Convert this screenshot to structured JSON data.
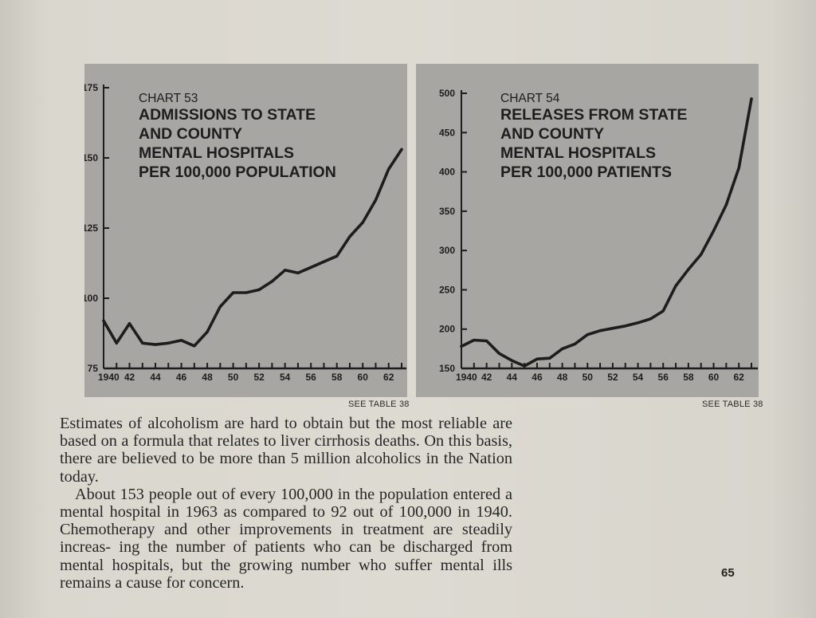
{
  "chart_data": [
    {
      "id": "chart-53",
      "type": "line",
      "title": "CHART 53",
      "subtitle_lines": [
        "ADMISSIONS TO STATE",
        "AND COUNTY",
        "MENTAL HOSPITALS",
        "PER 100,000 POPULATION"
      ],
      "xlabel": "",
      "ylabel": "",
      "xlim": [
        1940,
        1963
      ],
      "ylim": [
        75,
        175
      ],
      "y_ticks": [
        75,
        100,
        125,
        150,
        175
      ],
      "x_tick_labels": [
        "1940",
        "42",
        "44",
        "46",
        "48",
        "50",
        "52",
        "54",
        "56",
        "58",
        "60",
        "62"
      ],
      "grid": false,
      "series": [
        {
          "x": [
            1940,
            1941,
            1942,
            1943,
            1944,
            1945,
            1946,
            1947,
            1948,
            1949,
            1950,
            1951,
            1952,
            1953,
            1954,
            1955,
            1956,
            1957,
            1958,
            1959,
            1960,
            1961,
            1962,
            1963
          ],
          "values": [
            92,
            84,
            91,
            84,
            83.5,
            84,
            85,
            83,
            88,
            97,
            102,
            102,
            103,
            106,
            110,
            109,
            111,
            113,
            115,
            122,
            127,
            135,
            146,
            153
          ]
        }
      ],
      "source_note": "SEE TABLE 38"
    },
    {
      "id": "chart-54",
      "type": "line",
      "title": "CHART 54",
      "subtitle_lines": [
        "RELEASES FROM STATE",
        "AND COUNTY",
        "MENTAL HOSPITALS",
        "PER 100,000 PATIENTS"
      ],
      "xlabel": "",
      "ylabel": "",
      "xlim": [
        1940,
        1963
      ],
      "ylim": [
        150,
        500
      ],
      "y_ticks": [
        150,
        200,
        250,
        300,
        350,
        400,
        450,
        500
      ],
      "x_tick_labels": [
        "1940",
        "42",
        "44",
        "46",
        "48",
        "50",
        "52",
        "54",
        "56",
        "58",
        "60",
        "62"
      ],
      "grid": false,
      "series": [
        {
          "x": [
            1940,
            1941,
            1942,
            1943,
            1944,
            1945,
            1946,
            1947,
            1948,
            1949,
            1950,
            1951,
            1952,
            1953,
            1954,
            1955,
            1956,
            1957,
            1958,
            1959,
            1960,
            1961,
            1962,
            1963
          ],
          "values": [
            178,
            186,
            185,
            169,
            160,
            153,
            162,
            163,
            175,
            181,
            193,
            198,
            201,
            204,
            208,
            213,
            223,
            255,
            276,
            295,
            325,
            358,
            405,
            493
          ]
        }
      ],
      "source_note": "SEE TABLE 38"
    }
  ],
  "body": {
    "paragraph_1": "Estimates of alcoholism are hard to obtain but the most reliable are based on a formula that relates to liver cirrhosis deaths. On this basis, there are believed to be more than 5 million alcoholics in the Nation today.",
    "paragraph_2": "About 153 people out of every 100,000 in the population entered a mental hospital in 1963 as compared to 92 out of 100,000 in 1940. Chemotherapy and other improvements in treatment are steadily increas- ing the number of patients who can be discharged from mental hospitals, but the growing number who suffer mental ills remains a cause for concern."
  },
  "page_number": "65",
  "colors": {
    "panel_background": "#a7a6a2",
    "ink": "#1d1d1d",
    "paper": "#d6d3cb"
  }
}
